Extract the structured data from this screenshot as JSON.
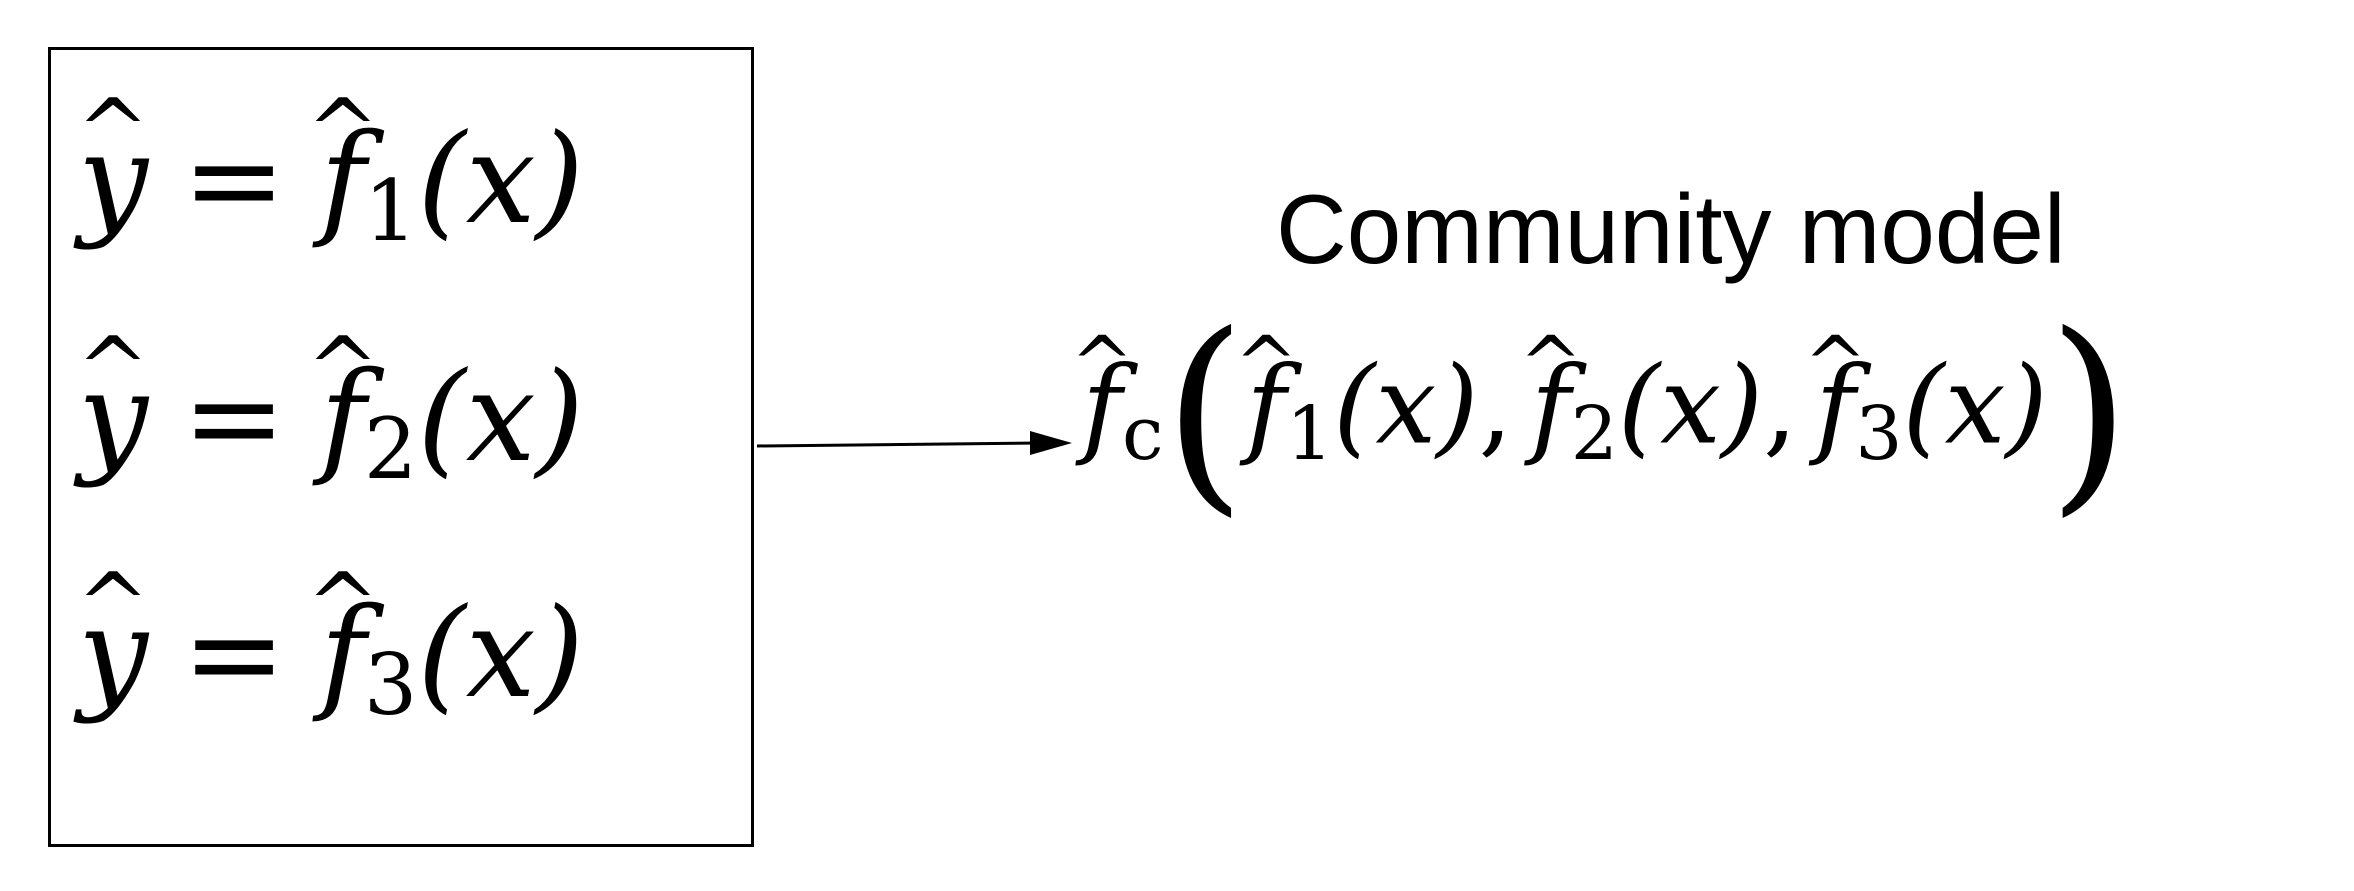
{
  "figure": {
    "models_box": {
      "equations": [
        {
          "lhs": "y",
          "hat_lhs": "^",
          "relation": "=",
          "fn": "f",
          "hat_fn": "^",
          "index": "1",
          "argument": "(x)"
        },
        {
          "lhs": "y",
          "hat_lhs": "^",
          "relation": "=",
          "fn": "f",
          "hat_fn": "^",
          "index": "2",
          "argument": "(x)"
        },
        {
          "lhs": "y",
          "hat_lhs": "^",
          "relation": "=",
          "fn": "f",
          "hat_fn": "^",
          "index": "3",
          "argument": "(x)"
        }
      ]
    },
    "community": {
      "title": "Community model",
      "outer_fn": "f",
      "outer_hat": "^",
      "outer_index": "c",
      "left_paren": "(",
      "right_paren": ")",
      "separator": ",",
      "terms": [
        {
          "fn": "f",
          "hat": "^",
          "index": "1",
          "argument": "(x)"
        },
        {
          "fn": "f",
          "hat": "^",
          "index": "2",
          "argument": "(x)"
        },
        {
          "fn": "f",
          "hat": "^",
          "index": "3",
          "argument": "(x)"
        }
      ]
    }
  },
  "colors": {
    "ink": "#000000",
    "background": "#ffffff"
  }
}
